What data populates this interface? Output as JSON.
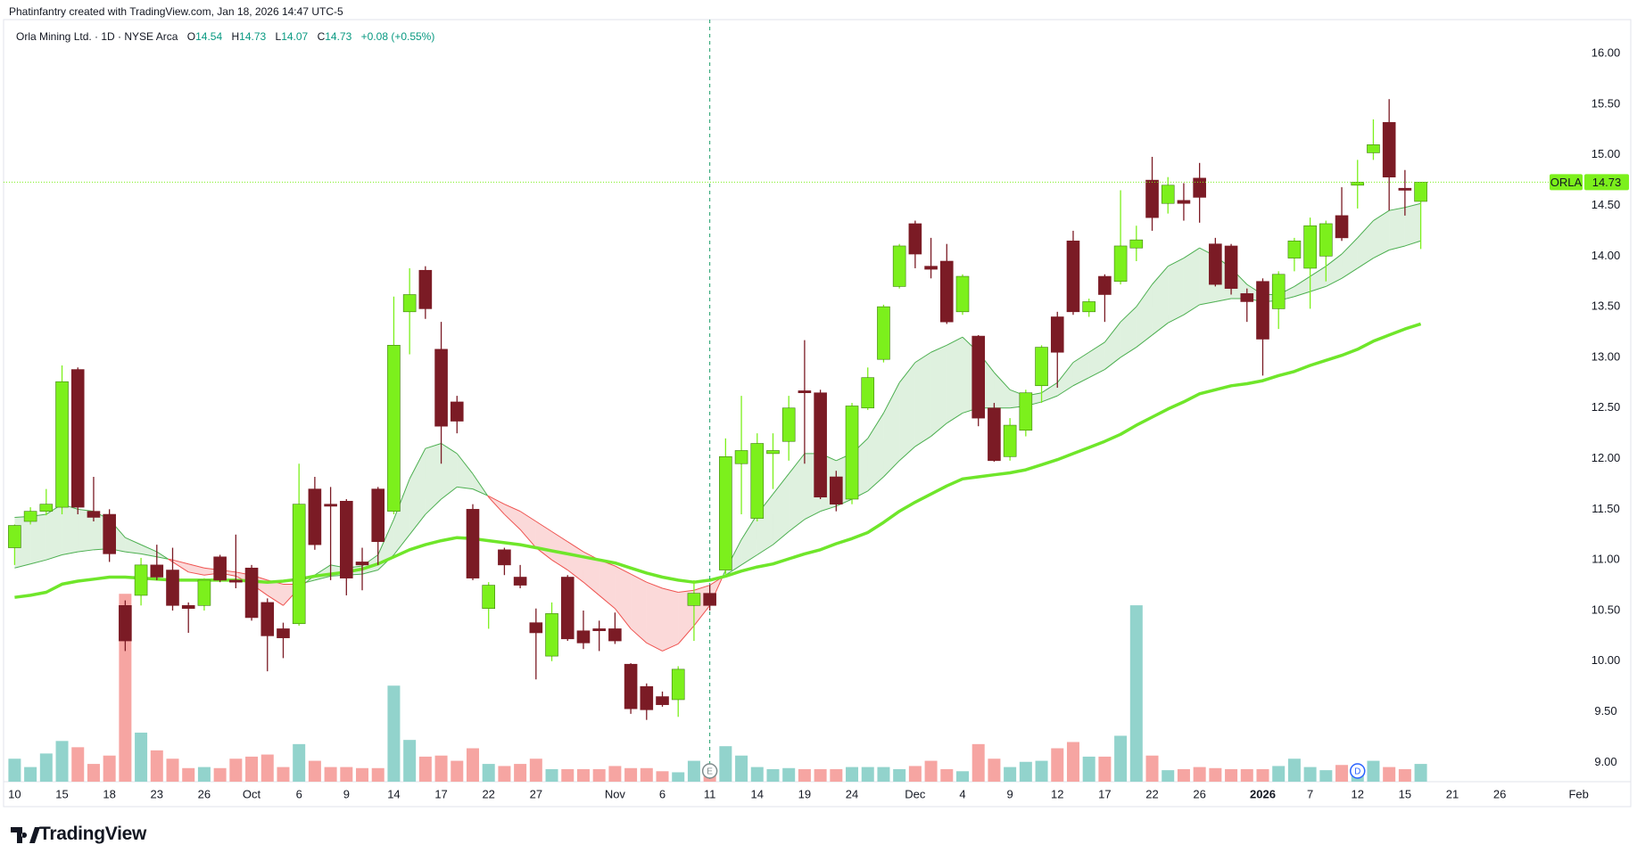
{
  "header": {
    "attribution": "Phatinfantry created with TradingView.com, Jan 18, 2026 14:47 UTC-5"
  },
  "chart_data": {
    "type": "candlestick",
    "title": "Orla Mining Ltd. · 1D · NYSE Arca",
    "ticker": "ORLA",
    "legend_labels": [
      "O",
      "H",
      "L",
      "C"
    ],
    "change": "+0.08 (+0.55%)",
    "categories": [
      "10",
      null,
      null,
      "15",
      null,
      null,
      "18",
      null,
      null,
      "23",
      null,
      null,
      "26",
      null,
      null,
      "Oct",
      null,
      null,
      "6",
      null,
      null,
      "9",
      null,
      null,
      "14",
      null,
      null,
      "17",
      null,
      null,
      "22",
      null,
      null,
      "27",
      null,
      null,
      null,
      null,
      "Nov",
      null,
      null,
      "6",
      null,
      null,
      "11",
      null,
      null,
      "14",
      null,
      null,
      "19",
      null,
      null,
      "24",
      null,
      null,
      null,
      "Dec",
      null,
      null,
      "4",
      null,
      null,
      "9",
      null,
      null,
      "12",
      null,
      null,
      "17",
      null,
      null,
      "22",
      null,
      null,
      "26",
      null,
      null,
      null,
      "2026",
      null,
      null,
      "7",
      null,
      null,
      "12",
      null,
      null,
      "15",
      null,
      null,
      "21",
      null,
      null,
      "26",
      null,
      null,
      null,
      null,
      "Feb"
    ],
    "open": [
      11.12,
      11.38,
      11.48,
      11.52,
      12.88,
      11.48,
      11.45,
      10.55,
      10.65,
      10.95,
      10.9,
      10.55,
      10.55,
      11.03,
      10.8,
      10.92,
      10.58,
      10.32,
      10.37,
      11.7,
      11.55,
      11.58,
      10.98,
      11.7,
      11.48,
      13.45,
      13.86,
      13.08,
      12.56,
      11.5,
      10.52,
      11.1,
      10.83,
      10.38,
      10.05,
      10.83,
      10.3,
      10.32,
      10.32,
      9.97,
      9.75,
      9.65,
      9.62,
      10.55,
      10.67,
      10.9,
      11.95,
      11.41,
      12.05,
      12.17,
      12.67,
      12.65,
      11.82,
      11.6,
      12.5,
      12.98,
      13.7,
      14.32,
      13.9,
      13.95,
      13.45,
      13.21,
      12.5,
      12.02,
      12.28,
      12.72,
      13.4,
      14.15,
      13.45,
      13.8,
      13.75,
      14.08,
      14.75,
      14.52,
      14.55,
      14.77,
      14.12,
      14.1,
      13.63,
      13.75,
      13.48,
      13.98,
      13.88,
      14.0,
      14.4,
      14.7,
      15.02,
      15.32,
      14.67,
      14.54,
      null,
      null,
      null,
      null,
      null,
      null,
      null,
      null,
      null,
      null
    ],
    "high": [
      11.35,
      11.52,
      11.7,
      12.92,
      12.9,
      11.82,
      11.5,
      10.6,
      11.02,
      11.15,
      11.12,
      10.58,
      10.82,
      11.05,
      11.25,
      10.95,
      10.62,
      10.38,
      11.95,
      11.82,
      11.72,
      11.6,
      11.12,
      11.72,
      13.6,
      13.88,
      13.9,
      13.35,
      12.62,
      11.55,
      10.78,
      11.12,
      10.95,
      10.52,
      10.58,
      10.85,
      10.5,
      10.4,
      10.48,
      9.98,
      9.78,
      9.7,
      9.95,
      10.8,
      10.75,
      12.2,
      12.62,
      12.25,
      12.25,
      12.62,
      13.17,
      12.68,
      11.88,
      12.55,
      12.9,
      13.52,
      14.12,
      14.35,
      14.18,
      14.12,
      13.82,
      13.22,
      12.55,
      12.4,
      12.68,
      13.12,
      13.45,
      14.25,
      13.58,
      13.82,
      14.65,
      14.3,
      14.98,
      14.78,
      14.72,
      14.92,
      14.18,
      14.12,
      13.68,
      13.78,
      13.85,
      14.18,
      14.38,
      14.35,
      14.68,
      14.95,
      15.35,
      15.55,
      14.85,
      14.73,
      null,
      null,
      null,
      null,
      null,
      null,
      null,
      null,
      null,
      null
    ],
    "low": [
      10.95,
      11.35,
      11.44,
      11.45,
      11.45,
      11.38,
      10.98,
      10.1,
      10.55,
      10.8,
      10.5,
      10.28,
      10.5,
      10.78,
      10.72,
      10.4,
      9.9,
      10.03,
      10.35,
      11.1,
      10.8,
      10.65,
      10.7,
      10.95,
      11.45,
      13.03,
      13.38,
      11.95,
      12.25,
      10.8,
      10.32,
      10.85,
      10.72,
      9.82,
      10.0,
      10.2,
      10.12,
      10.1,
      10.17,
      9.48,
      9.42,
      9.55,
      9.45,
      10.2,
      10.5,
      10.85,
      11.45,
      11.38,
      11.7,
      11.98,
      11.95,
      11.6,
      11.48,
      11.55,
      12.48,
      12.95,
      13.68,
      13.88,
      13.78,
      13.33,
      13.42,
      12.32,
      11.97,
      11.98,
      12.22,
      12.55,
      12.7,
      13.42,
      13.4,
      13.35,
      13.72,
      13.95,
      14.25,
      14.42,
      14.35,
      14.33,
      13.7,
      13.62,
      13.35,
      12.82,
      13.28,
      13.85,
      13.48,
      13.75,
      14.15,
      14.47,
      14.95,
      14.45,
      14.4,
      14.07,
      null,
      null,
      null,
      null,
      null,
      null,
      null,
      null,
      null,
      null
    ],
    "close": [
      11.34,
      11.48,
      11.55,
      12.76,
      11.52,
      11.42,
      11.06,
      10.2,
      10.95,
      10.83,
      10.55,
      10.52,
      10.8,
      10.8,
      10.78,
      10.43,
      10.25,
      10.23,
      11.55,
      11.15,
      11.53,
      10.82,
      10.95,
      11.18,
      13.12,
      13.62,
      13.48,
      12.32,
      12.37,
      10.82,
      10.75,
      10.95,
      10.75,
      10.28,
      10.47,
      10.22,
      10.18,
      10.3,
      10.2,
      9.53,
      9.52,
      9.57,
      9.92,
      10.67,
      10.55,
      12.02,
      12.08,
      12.15,
      12.08,
      12.5,
      12.65,
      11.62,
      11.55,
      12.52,
      12.8,
      13.5,
      14.1,
      14.02,
      13.87,
      13.35,
      13.8,
      12.4,
      11.98,
      12.33,
      12.65,
      13.1,
      13.05,
      13.45,
      13.55,
      13.62,
      14.1,
      14.16,
      14.38,
      14.7,
      14.52,
      14.58,
      13.72,
      13.68,
      13.55,
      13.18,
      13.82,
      14.15,
      14.3,
      14.32,
      14.18,
      14.73,
      15.1,
      14.78,
      14.65,
      14.73,
      null,
      null,
      null,
      null,
      null,
      null,
      null,
      null,
      null,
      null
    ],
    "volume": [
      22,
      14,
      27,
      39,
      33,
      17,
      25,
      180,
      47,
      30,
      22,
      13,
      14,
      13,
      22,
      24,
      26,
      14,
      36,
      20,
      14,
      14,
      13,
      13,
      92,
      40,
      24,
      25,
      20,
      32,
      17,
      15,
      17,
      22,
      12,
      12,
      12,
      12,
      15,
      13,
      13,
      10,
      9,
      20,
      13,
      34,
      25,
      14,
      12,
      13,
      12,
      12,
      12,
      14,
      14,
      14,
      12,
      15,
      20,
      12,
      10,
      36,
      22,
      14,
      19,
      20,
      32,
      38,
      24,
      24,
      44,
      169,
      25,
      11,
      12,
      14,
      13,
      12,
      12,
      12,
      15,
      22,
      14,
      11,
      16,
      14,
      20,
      14,
      12,
      17,
      null,
      null,
      null,
      null,
      null,
      null,
      null,
      null,
      null,
      null
    ],
    "ma": [
      10.63,
      10.65,
      10.68,
      10.76,
      10.79,
      10.81,
      10.83,
      10.83,
      10.82,
      10.81,
      10.8,
      10.8,
      10.8,
      10.8,
      10.8,
      10.79,
      10.78,
      10.79,
      10.81,
      10.84,
      10.86,
      10.88,
      10.91,
      10.96,
      11.03,
      11.1,
      11.15,
      11.19,
      11.22,
      11.21,
      11.19,
      11.17,
      11.15,
      11.12,
      11.09,
      11.06,
      11.03,
      11.0,
      10.97,
      10.92,
      10.87,
      10.83,
      10.8,
      10.78,
      10.8,
      10.84,
      10.89,
      10.93,
      10.96,
      11.01,
      11.06,
      11.1,
      11.16,
      11.21,
      11.27,
      11.37,
      11.48,
      11.57,
      11.65,
      11.73,
      11.8,
      11.82,
      11.84,
      11.86,
      11.89,
      11.94,
      11.99,
      12.05,
      12.11,
      12.17,
      12.24,
      12.33,
      12.41,
      12.49,
      12.56,
      12.64,
      12.68,
      12.72,
      12.74,
      12.77,
      12.82,
      12.86,
      12.92,
      12.97,
      13.02,
      13.08,
      13.16,
      13.22,
      13.28,
      13.33,
      null,
      null,
      null,
      null,
      null,
      null,
      null,
      null,
      null,
      null
    ],
    "band_fast": [
      11.42,
      11.43,
      11.45,
      11.55,
      11.5,
      11.48,
      11.4,
      11.22,
      11.15,
      11.08,
      10.98,
      10.88,
      10.85,
      10.87,
      10.84,
      10.76,
      10.65,
      10.55,
      10.72,
      10.85,
      10.95,
      10.92,
      10.94,
      11.05,
      11.4,
      11.8,
      12.1,
      12.15,
      12.05,
      11.85,
      11.62,
      11.45,
      11.3,
      11.12,
      11.0,
      10.9,
      10.78,
      10.65,
      10.52,
      10.32,
      10.18,
      10.1,
      10.17,
      10.35,
      10.55,
      10.9,
      11.2,
      11.45,
      11.65,
      11.85,
      12.05,
      12.05,
      11.98,
      12.05,
      12.2,
      12.45,
      12.75,
      12.95,
      13.05,
      13.12,
      13.2,
      13.05,
      12.85,
      12.68,
      12.62,
      12.65,
      12.75,
      12.95,
      13.05,
      13.15,
      13.35,
      13.5,
      13.72,
      13.9,
      13.98,
      14.08,
      14.0,
      13.88,
      13.72,
      13.62,
      13.62,
      13.7,
      13.8,
      13.9,
      14.02,
      14.18,
      14.35,
      14.45,
      14.48,
      14.52,
      null,
      null,
      null,
      null,
      null,
      null,
      null,
      null,
      null,
      null
    ],
    "band_slow": [
      10.92,
      10.96,
      11.0,
      11.05,
      11.08,
      11.1,
      11.11,
      11.08,
      11.06,
      11.03,
      11.0,
      10.96,
      10.92,
      10.9,
      10.88,
      10.85,
      10.8,
      10.76,
      10.76,
      10.8,
      10.84,
      10.85,
      10.86,
      10.9,
      11.05,
      11.25,
      11.45,
      11.6,
      11.72,
      11.7,
      11.63,
      11.55,
      11.48,
      11.38,
      11.28,
      11.18,
      11.08,
      11.0,
      10.94,
      10.86,
      10.78,
      10.72,
      10.68,
      10.7,
      10.75,
      10.85,
      10.95,
      11.05,
      11.15,
      11.28,
      11.4,
      11.48,
      11.53,
      11.6,
      11.68,
      11.82,
      11.98,
      12.12,
      12.22,
      12.35,
      12.45,
      12.5,
      12.5,
      12.5,
      12.52,
      12.56,
      12.62,
      12.72,
      12.8,
      12.88,
      13.0,
      13.1,
      13.22,
      13.34,
      13.42,
      13.52,
      13.55,
      13.58,
      13.58,
      13.55,
      13.56,
      13.6,
      13.65,
      13.7,
      13.78,
      13.88,
      13.98,
      14.06,
      14.1,
      14.15,
      null,
      null,
      null,
      null,
      null,
      null,
      null,
      null,
      null,
      null
    ],
    "events": [
      null,
      null,
      null,
      null,
      null,
      null,
      null,
      null,
      null,
      null,
      null,
      null,
      null,
      null,
      null,
      null,
      null,
      null,
      null,
      null,
      null,
      null,
      null,
      null,
      null,
      null,
      null,
      null,
      null,
      null,
      null,
      null,
      null,
      null,
      null,
      null,
      null,
      null,
      null,
      null,
      null,
      null,
      null,
      null,
      {
        "label": "E",
        "line": true,
        "color": "#7f8c8d"
      },
      null,
      null,
      null,
      null,
      null,
      null,
      null,
      null,
      null,
      null,
      null,
      null,
      null,
      null,
      null,
      null,
      null,
      null,
      null,
      null,
      null,
      null,
      null,
      null,
      null,
      null,
      null,
      null,
      null,
      null,
      null,
      null,
      null,
      null,
      null,
      null,
      null,
      null,
      null,
      null,
      {
        "label": "D",
        "line": false,
        "color": "#2962ff"
      },
      null,
      null,
      null,
      null,
      null,
      null,
      null,
      null,
      null,
      null,
      null,
      null,
      null,
      null
    ],
    "ylim": [
      8.81,
      16.3
    ],
    "yticks": [
      {
        "value": 9,
        "label": "9.00"
      },
      {
        "value": 9.5,
        "label": "9.50"
      },
      {
        "value": 10,
        "label": "10.00"
      },
      {
        "value": 10.5,
        "label": "10.50"
      },
      {
        "value": 11,
        "label": "11.00"
      },
      {
        "value": 11.5,
        "label": "11.50"
      },
      {
        "value": 12,
        "label": "12.00"
      },
      {
        "value": 12.5,
        "label": "12.50"
      },
      {
        "value": 13,
        "label": "13.00"
      },
      {
        "value": 13.5,
        "label": "13.50"
      },
      {
        "value": 14,
        "label": "14.00"
      },
      {
        "value": 14.5,
        "label": "14.50"
      },
      {
        "value": 15,
        "label": "15.00"
      },
      {
        "value": 15.5,
        "label": "15.50"
      },
      {
        "value": 16,
        "label": "16.00"
      }
    ],
    "grid": false,
    "last_price_line": true,
    "colors": {
      "up": "#7cf01c",
      "down": "#7b1b25",
      "volume_up": "#92d3cc",
      "volume_down": "#f6a5a2",
      "ma": "#6fe62a",
      "band_up_line": "#4caf50",
      "band_down_line": "#ef5350",
      "band_up_fill": "rgba(76,175,80,0.18)",
      "band_down_fill": "rgba(239,83,80,0.22)",
      "legend_value": "#089981",
      "price_tag": "#7cf01c"
    }
  },
  "footer": {
    "brand": "TradingView"
  }
}
